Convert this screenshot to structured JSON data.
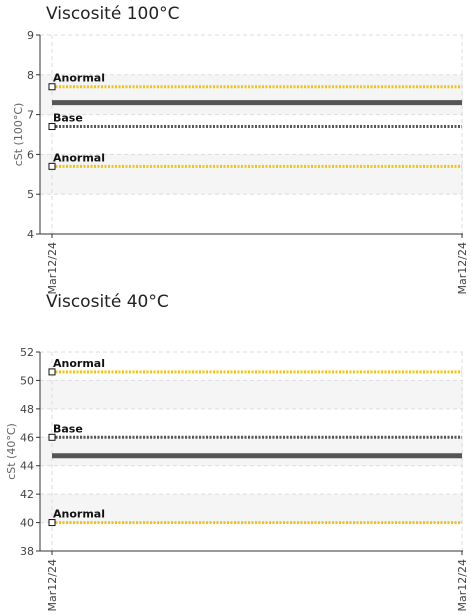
{
  "chart_data": [
    {
      "type": "line",
      "title": "Viscosité 100°C",
      "ylabel": "cSt (100°C)",
      "x": [
        "Mar12/24",
        "Mar12/24"
      ],
      "ylim": [
        4,
        9
      ],
      "yticks": [
        4,
        5,
        6,
        7,
        8,
        9
      ],
      "grid": true,
      "series": [
        {
          "values": [
            7.3,
            7.3
          ],
          "color": "#555555",
          "style": "solid"
        }
      ],
      "reference_lines": [
        {
          "label": "Anormal",
          "value": 7.7,
          "color": "#f2c40f",
          "style": "dashed"
        },
        {
          "label": "Base",
          "value": 6.7,
          "color": "#555555",
          "style": "dashed"
        },
        {
          "label": "Anormal",
          "value": 5.7,
          "color": "#f2c40f",
          "style": "dashed"
        }
      ],
      "shaded_bands": [
        [
          5,
          6
        ],
        [
          7,
          8
        ]
      ]
    },
    {
      "type": "line",
      "title": "Viscosité 40°C",
      "ylabel": "cSt (40°C)",
      "x": [
        "Mar12/24",
        "Mar12/24"
      ],
      "ylim": [
        38,
        52
      ],
      "yticks": [
        38,
        40,
        42,
        44,
        46,
        48,
        50,
        52
      ],
      "grid": true,
      "series": [
        {
          "values": [
            44.7,
            44.7
          ],
          "color": "#555555",
          "style": "solid"
        }
      ],
      "reference_lines": [
        {
          "label": "Anormal",
          "value": 50.6,
          "color": "#f2c40f",
          "style": "dashed"
        },
        {
          "label": "Base",
          "value": 46.0,
          "color": "#555555",
          "style": "dashed"
        },
        {
          "label": "Anormal",
          "value": 40.0,
          "color": "#f2c40f",
          "style": "dashed"
        }
      ],
      "shaded_bands": [
        [
          40,
          42
        ],
        [
          44,
          46
        ],
        [
          48,
          50
        ]
      ]
    }
  ]
}
